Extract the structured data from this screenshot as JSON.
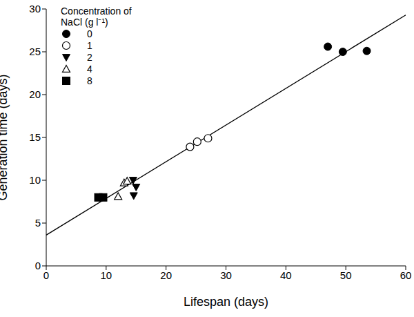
{
  "chart_data": {
    "type": "scatter",
    "x_label": "Lifespan (days)",
    "y_label": "Generation time (days)",
    "legend_title": "Concentration of NaCl (g l⁻¹)",
    "legend": "upper left",
    "xlim": [
      0,
      60
    ],
    "xticks": [
      0,
      10,
      20,
      30,
      40,
      50,
      60
    ],
    "ylim": [
      0,
      30
    ],
    "yticks": [
      0,
      5,
      10,
      15,
      20,
      25,
      30
    ],
    "series": [
      {
        "name": "0",
        "color": "#000000",
        "marker": "circle",
        "x": [
          47,
          49.5,
          53.5
        ],
        "values": [
          25.6,
          25,
          25.1
        ]
      },
      {
        "name": "1",
        "color": "#000000",
        "marker": "circle-open",
        "x": [
          24,
          25.2,
          27
        ],
        "values": [
          13.9,
          14.5,
          14.9
        ]
      },
      {
        "name": "2",
        "color": "#000000",
        "marker": "triangle-down",
        "x": [
          14.5,
          14.6,
          15
        ],
        "values": [
          10,
          8.2,
          9.2
        ]
      },
      {
        "name": "4",
        "color": "#000000",
        "marker": "triangle-open",
        "x": [
          12,
          13,
          13.5
        ],
        "values": [
          8.1,
          9.7,
          9.9
        ]
      },
      {
        "name": "8",
        "color": "#000000",
        "marker": "square",
        "x": [
          8.7,
          9.5
        ],
        "values": [
          8,
          8
        ]
      }
    ],
    "fit_line": {
      "x": [
        0,
        60
      ],
      "values": [
        3.6,
        29.3
      ],
      "color": "#000000",
      "line_style": "solid"
    }
  }
}
